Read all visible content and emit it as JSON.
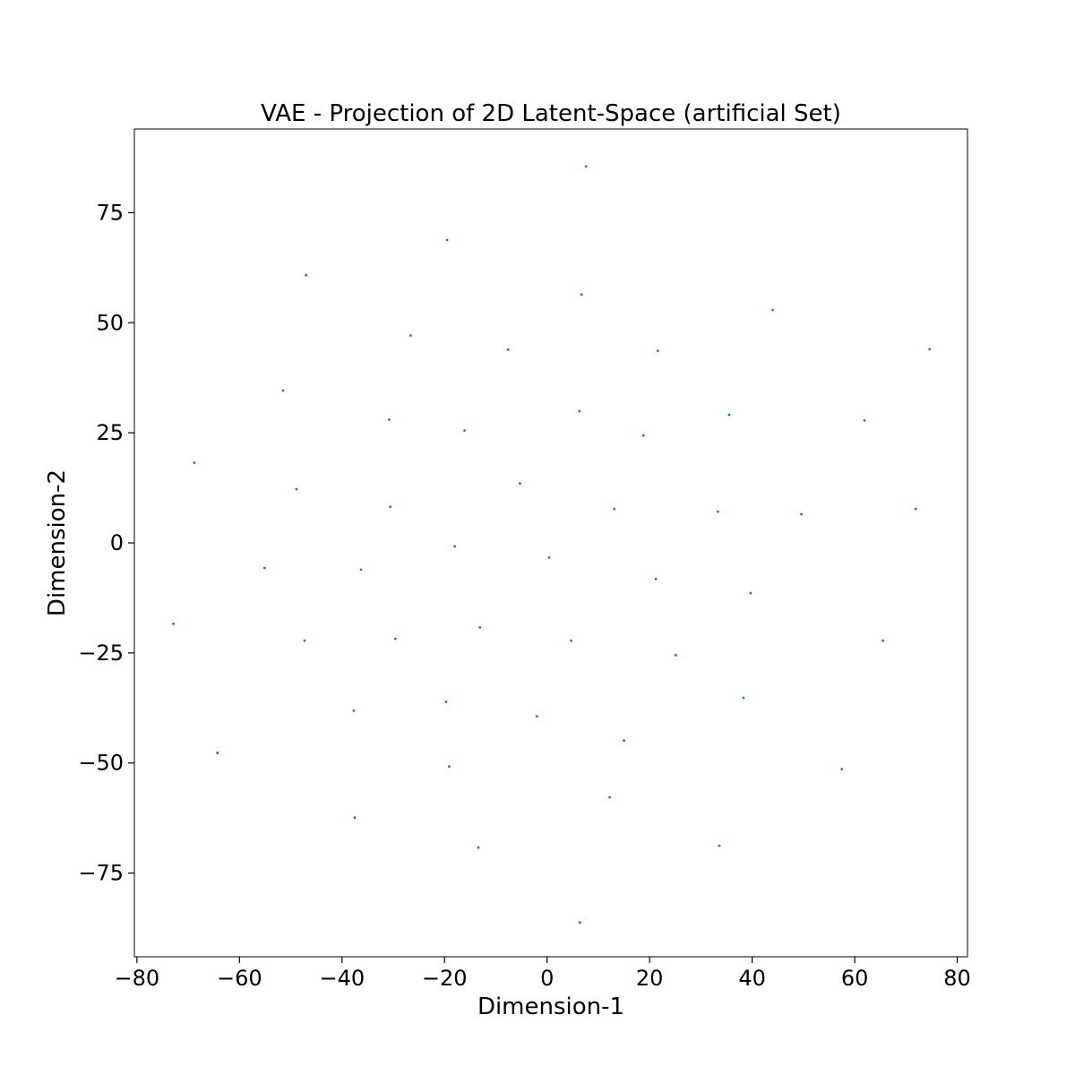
{
  "chart_data": {
    "type": "scatter",
    "title": "VAE - Projection of 2D Latent-Space (artificial Set)",
    "xlabel": "Dimension-1",
    "ylabel": "Dimension-2",
    "xlim": [
      -80.5,
      82
    ],
    "ylim": [
      -94,
      94
    ],
    "xticks": [
      -80,
      -60,
      -40,
      -20,
      0,
      20,
      40,
      60,
      80
    ],
    "xtick_labels": [
      "−80",
      "−60",
      "−40",
      "−20",
      "0",
      "20",
      "40",
      "60",
      "80"
    ],
    "yticks": [
      -75,
      -50,
      -25,
      0,
      25,
      50,
      75
    ],
    "ytick_labels": [
      "−75",
      "−50",
      "−25",
      "0",
      "25",
      "50",
      "75"
    ],
    "grid": false,
    "legend": "none",
    "marker_color": "#1f77b4",
    "points": [
      [
        7.6,
        85.5
      ],
      [
        -19.5,
        68.8
      ],
      [
        -47.0,
        60.8
      ],
      [
        6.7,
        56.4
      ],
      [
        44.0,
        52.9
      ],
      [
        -26.6,
        47.1
      ],
      [
        -7.6,
        43.9
      ],
      [
        21.6,
        43.6
      ],
      [
        74.6,
        44.0
      ],
      [
        -51.5,
        34.6
      ],
      [
        6.3,
        29.9
      ],
      [
        35.5,
        29.1
      ],
      [
        -30.8,
        28.0
      ],
      [
        61.9,
        27.8
      ],
      [
        -16.1,
        25.5
      ],
      [
        18.8,
        24.4
      ],
      [
        -68.8,
        18.2
      ],
      [
        -5.3,
        13.5
      ],
      [
        -48.9,
        12.2
      ],
      [
        -30.6,
        8.2
      ],
      [
        13.1,
        7.7
      ],
      [
        33.3,
        7.1
      ],
      [
        49.6,
        6.5
      ],
      [
        71.9,
        7.7
      ],
      [
        -18.0,
        -0.8
      ],
      [
        0.4,
        -3.3
      ],
      [
        -55.1,
        -5.7
      ],
      [
        -36.3,
        -6.1
      ],
      [
        21.2,
        -8.2
      ],
      [
        39.7,
        -11.4
      ],
      [
        -72.9,
        -18.4
      ],
      [
        -13.1,
        -19.2
      ],
      [
        -29.6,
        -21.8
      ],
      [
        -47.3,
        -22.2
      ],
      [
        4.7,
        -22.2
      ],
      [
        65.5,
        -22.2
      ],
      [
        25.1,
        -25.5
      ],
      [
        38.3,
        -35.2
      ],
      [
        -19.7,
        -36.1
      ],
      [
        -37.7,
        -38.1
      ],
      [
        -2.0,
        -39.4
      ],
      [
        15.0,
        -44.9
      ],
      [
        -64.3,
        -47.7
      ],
      [
        -19.1,
        -50.8
      ],
      [
        57.5,
        -51.4
      ],
      [
        12.2,
        -57.8
      ],
      [
        -37.5,
        -62.4
      ],
      [
        33.6,
        -68.8
      ],
      [
        -13.4,
        -69.2
      ],
      [
        6.4,
        -86.2
      ]
    ]
  }
}
